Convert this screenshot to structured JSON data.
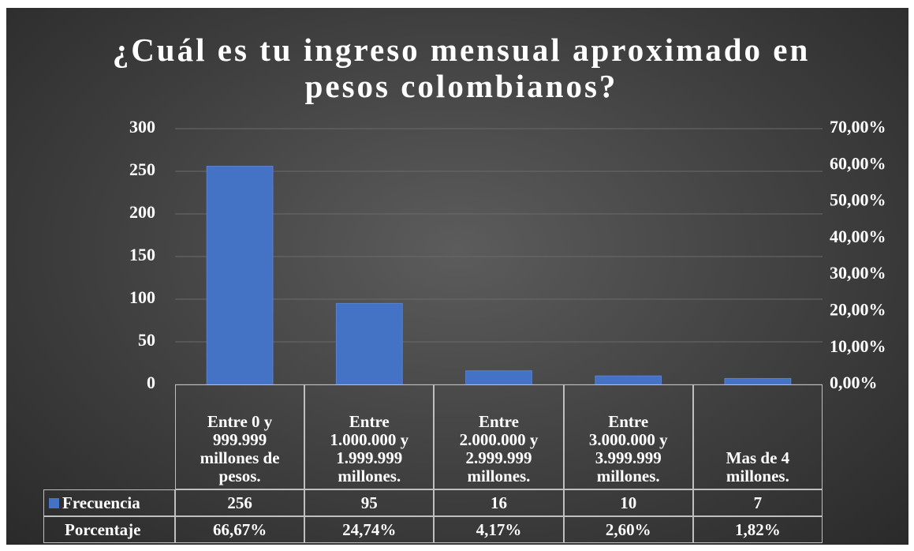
{
  "chart_data": {
    "type": "bar",
    "title": "¿Cuál es tu ingreso mensual aproximado en pesos colombianos?",
    "categories": [
      "Entre 0 y 999.999 millones de pesos.",
      "Entre 1.000.000 y 1.999.999 millones.",
      "Entre 2.000.000 y 2.999.999 millones.",
      "Entre 3.000.000 y 3.999.999 millones.",
      "Mas de 4 millones."
    ],
    "series": [
      {
        "name": "Frecuencia",
        "color": "#4472c4",
        "values": [
          256,
          95,
          16,
          10,
          7
        ]
      },
      {
        "name": "Porcentaje",
        "axis": "y2",
        "values": [
          66.67,
          24.74,
          4.17,
          2.6,
          1.82
        ],
        "value_labels": [
          "66,67%",
          "24,74%",
          "4,17%",
          "2,60%",
          "1,82%"
        ]
      }
    ],
    "ylim": [
      0,
      300
    ],
    "yticks": [
      0,
      50,
      100,
      150,
      200,
      250,
      300
    ],
    "y2lim": [
      0,
      70
    ],
    "y2ticks": [
      {
        "value": 0,
        "label": "0,00%"
      },
      {
        "value": 10,
        "label": "10,00%"
      },
      {
        "value": 20,
        "label": "20,00%"
      },
      {
        "value": 30,
        "label": "30,00%"
      },
      {
        "value": 40,
        "label": "40,00%"
      },
      {
        "value": 50,
        "label": "50,00%"
      },
      {
        "value": 60,
        "label": "60,00%"
      },
      {
        "value": 70,
        "label": "70,00%"
      }
    ],
    "grid": true,
    "data_table": true
  }
}
